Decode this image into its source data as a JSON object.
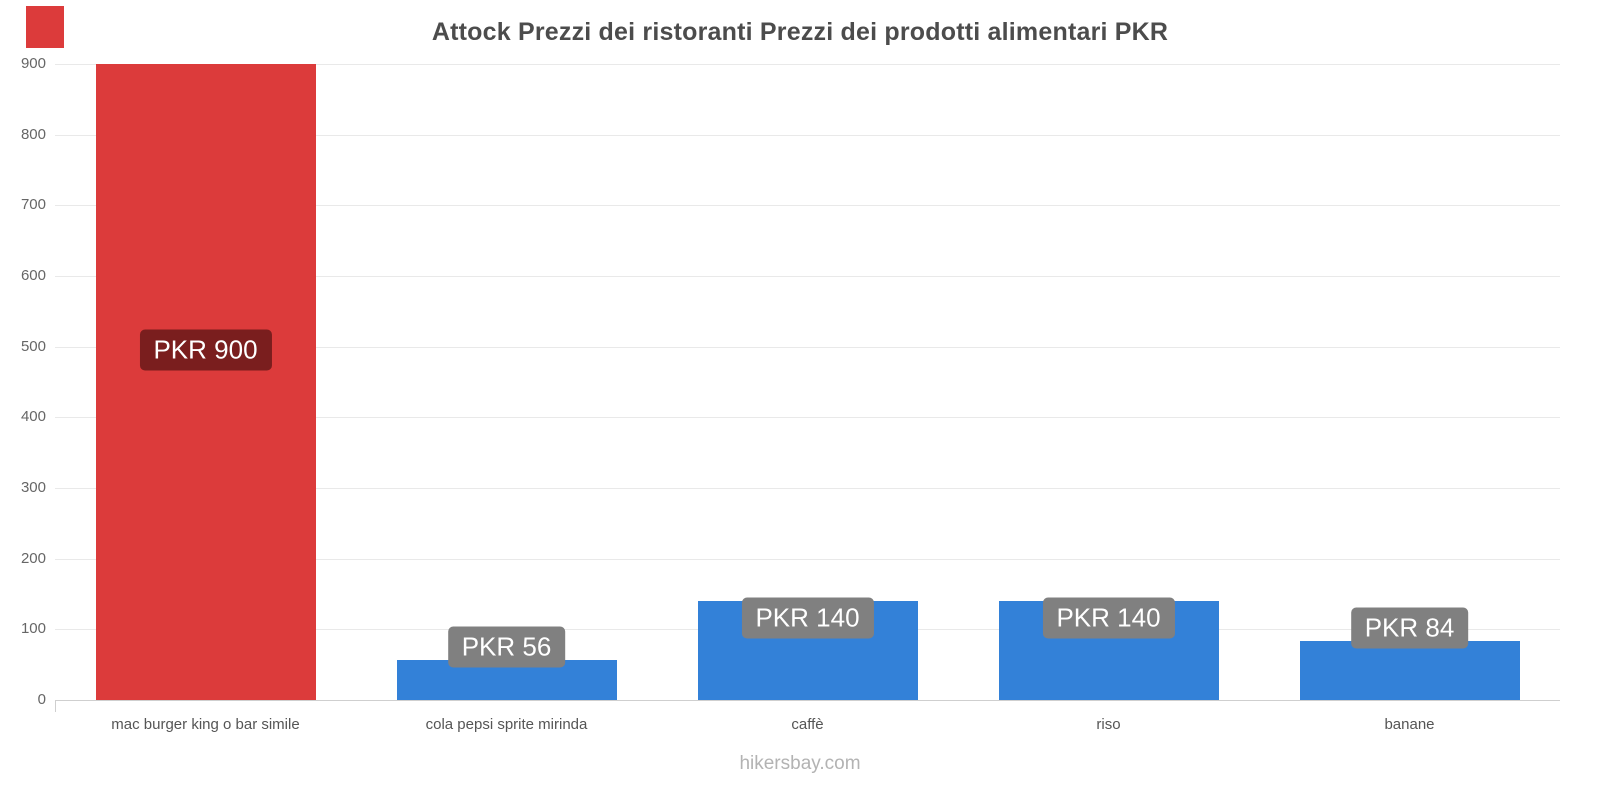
{
  "footer": "hikersbay.com",
  "accent_color": "#dc3b3b",
  "chart_data": {
    "type": "bar",
    "title": "Attock Prezzi dei ristoranti Prezzi dei prodotti alimentari PKR",
    "categories": [
      "mac burger king o bar simile",
      "cola pepsi sprite mirinda",
      "caffè",
      "riso",
      "banane"
    ],
    "values": [
      900,
      56,
      140,
      140,
      84
    ],
    "value_labels": [
      "PKR 900",
      "PKR 56",
      "PKR 140",
      "PKR 140",
      "PKR 84"
    ],
    "bar_colors": [
      "#dc3b3b",
      "#3381d8",
      "#3381d8",
      "#3381d8",
      "#3381d8"
    ],
    "value_label_bg": [
      "#7a1e1e",
      "#808080",
      "#808080",
      "#808080",
      "#808080"
    ],
    "xlabel": "",
    "ylabel": "",
    "ylim": [
      0,
      900
    ],
    "yticks": [
      0,
      100,
      200,
      300,
      400,
      500,
      600,
      700,
      800,
      900
    ],
    "grid": true,
    "legend": "none",
    "currency": "PKR"
  }
}
